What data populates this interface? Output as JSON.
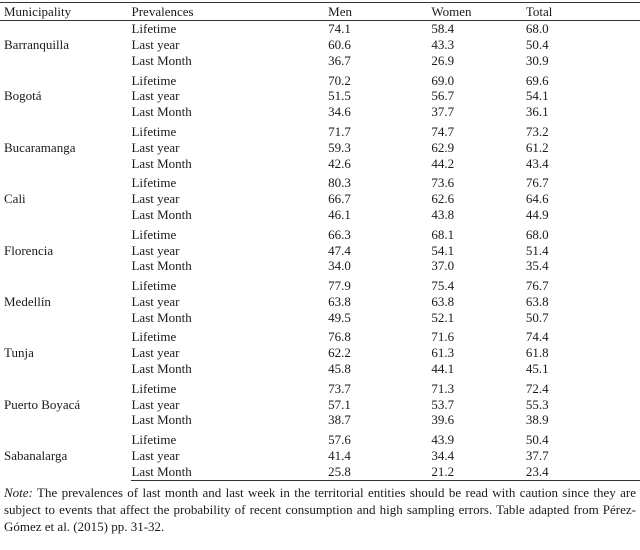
{
  "table": {
    "headers": [
      "Municipality",
      "Prevalences",
      "Men",
      "Women",
      "Total"
    ],
    "groups": [
      {
        "municipality": "Barranquilla",
        "rows": [
          {
            "prevalence": "Lifetime",
            "men": "74.1",
            "women": "58.4",
            "total": "68.0"
          },
          {
            "prevalence": "Last year",
            "men": "60.6",
            "women": "43.3",
            "total": "50.4"
          },
          {
            "prevalence": "Last Month",
            "men": "36.7",
            "women": "26.9",
            "total": "30.9"
          }
        ]
      },
      {
        "municipality": "Bogotá",
        "rows": [
          {
            "prevalence": "Lifetime",
            "men": "70.2",
            "women": "69.0",
            "total": "69.6"
          },
          {
            "prevalence": "Last year",
            "men": "51.5",
            "women": "56.7",
            "total": "54.1"
          },
          {
            "prevalence": "Last Month",
            "men": "34.6",
            "women": "37.7",
            "total": "36.1"
          }
        ]
      },
      {
        "municipality": "Bucaramanga",
        "rows": [
          {
            "prevalence": "Lifetime",
            "men": "71.7",
            "women": "74.7",
            "total": "73.2"
          },
          {
            "prevalence": "Last year",
            "men": "59.3",
            "women": "62.9",
            "total": "61.2"
          },
          {
            "prevalence": "Last Month",
            "men": "42.6",
            "women": "44.2",
            "total": "43.4"
          }
        ]
      },
      {
        "municipality": "Cali",
        "rows": [
          {
            "prevalence": "Lifetime",
            "men": "80.3",
            "women": "73.6",
            "total": "76.7"
          },
          {
            "prevalence": "Last year",
            "men": "66.7",
            "women": "62.6",
            "total": "64.6"
          },
          {
            "prevalence": "Last Month",
            "men": "46.1",
            "women": "43.8",
            "total": "44.9"
          }
        ]
      },
      {
        "municipality": "Florencia",
        "rows": [
          {
            "prevalence": "Lifetime",
            "men": "66.3",
            "women": "68.1",
            "total": "68.0"
          },
          {
            "prevalence": "Last year",
            "men": "47.4",
            "women": "54.1",
            "total": "51.4"
          },
          {
            "prevalence": "Last Month",
            "men": "34.0",
            "women": "37.0",
            "total": "35.4"
          }
        ]
      },
      {
        "municipality": "Medellín",
        "rows": [
          {
            "prevalence": "Lifetime",
            "men": "77.9",
            "women": "75.4",
            "total": "76.7"
          },
          {
            "prevalence": "Last year",
            "men": "63.8",
            "women": "63.8",
            "total": "63.8"
          },
          {
            "prevalence": "Last Month",
            "men": "49.5",
            "women": "52.1",
            "total": "50.7"
          }
        ]
      },
      {
        "municipality": "Tunja",
        "rows": [
          {
            "prevalence": "Lifetime",
            "men": "76.8",
            "women": "71.6",
            "total": "74.4"
          },
          {
            "prevalence": "Last year",
            "men": "62.2",
            "women": "61.3",
            "total": "61.8"
          },
          {
            "prevalence": "Last Month",
            "men": "45.8",
            "women": "44.1",
            "total": "45.1"
          }
        ]
      },
      {
        "municipality": "Puerto Boyacá",
        "rows": [
          {
            "prevalence": "Lifetime",
            "men": "73.7",
            "women": "71.3",
            "total": "72.4"
          },
          {
            "prevalence": "Last year",
            "men": "57.1",
            "women": "53.7",
            "total": "55.3"
          },
          {
            "prevalence": "Last Month",
            "men": "38.7",
            "women": "39.6",
            "total": "38.9"
          }
        ]
      },
      {
        "municipality": "Sabanalarga",
        "rows": [
          {
            "prevalence": "Lifetime",
            "men": "57.6",
            "women": "43.9",
            "total": "50.4"
          },
          {
            "prevalence": "Last year",
            "men": "41.4",
            "women": "34.4",
            "total": "37.7"
          },
          {
            "prevalence": "Last Month",
            "men": "25.8",
            "women": "21.2",
            "total": "23.4"
          }
        ]
      }
    ]
  },
  "note": {
    "label": "Note:",
    "text": " The prevalences of last month and last week in the territorial entities should be read with caution since they are subject to events that affect the probability of recent consumption and high sampling errors. Table adapted from Pérez-Gómez et al. (2015) pp. 31-32."
  }
}
